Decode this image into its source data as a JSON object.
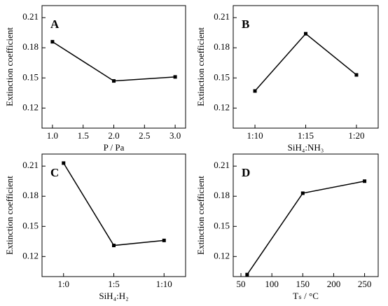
{
  "chart_data": [
    {
      "type": "line",
      "panel_label": "A",
      "xlabel": "P / Pa",
      "ylabel": "Extinction coefficient",
      "x": [
        1.0,
        2.0,
        3.0
      ],
      "values": [
        0.186,
        0.147,
        0.151
      ],
      "color": "#000000",
      "xlim": [
        0.83,
        3.17
      ],
      "xticks": [
        {
          "value": 1,
          "label": "1.0"
        },
        {
          "value": 1.5,
          "label": "1.5"
        },
        {
          "value": 2,
          "label": "2.0"
        },
        {
          "value": 2.5,
          "label": "2.5"
        },
        {
          "value": 3,
          "label": "3.0"
        }
      ],
      "ylim": [
        0.1,
        0.222
      ],
      "yticks": [
        0.12,
        0.15,
        0.18,
        0.21
      ]
    },
    {
      "type": "line",
      "panel_label": "B",
      "xlabel": "SiH₄:NH₃",
      "ylabel": "Extinction coefficient",
      "categories": [
        "1:10",
        "1:15",
        "1:20"
      ],
      "values": [
        0.137,
        0.194,
        0.153
      ],
      "color": "#000000",
      "ylim": [
        0.1,
        0.222
      ],
      "yticks": [
        0.12,
        0.15,
        0.18,
        0.21
      ]
    },
    {
      "type": "line",
      "panel_label": "C",
      "xlabel": "SiH₄:H₂",
      "ylabel": "Extinction coefficient",
      "categories": [
        "1:0",
        "1:5",
        "1:10"
      ],
      "values": [
        0.213,
        0.131,
        0.136
      ],
      "color": "#000000",
      "ylim": [
        0.1,
        0.222
      ],
      "yticks": [
        0.12,
        0.15,
        0.18,
        0.21
      ]
    },
    {
      "type": "line",
      "panel_label": "D",
      "xlabel": "Tₛ / °C",
      "ylabel": "Extinction coefficient",
      "x": [
        60,
        150,
        250
      ],
      "values": [
        0.102,
        0.183,
        0.195
      ],
      "color": "#000000",
      "xlim": [
        37.5,
        272
      ],
      "xticks": [
        50,
        100,
        150,
        200,
        250
      ],
      "ylim": [
        0.1,
        0.222
      ],
      "yticks": [
        0.12,
        0.15,
        0.18,
        0.21
      ]
    }
  ]
}
